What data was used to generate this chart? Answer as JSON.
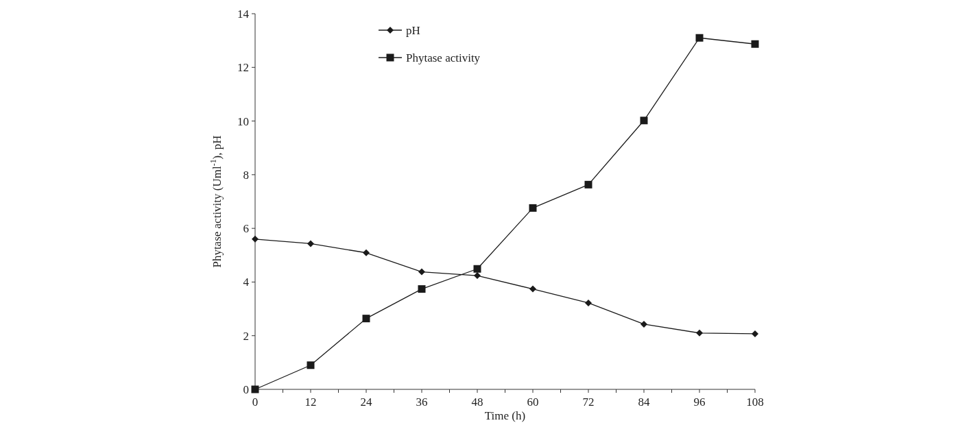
{
  "chart_data": {
    "type": "line",
    "xlabel": "Time (h)",
    "ylabel": "Phytase activity (Uml$^{-1}$), pH",
    "x": [
      0,
      12,
      24,
      36,
      48,
      60,
      72,
      84,
      96,
      108
    ],
    "series": [
      {
        "name": "pH",
        "color": "#1a1a1a",
        "marker": "diamond",
        "values": [
          5.6,
          5.43,
          5.09,
          4.38,
          4.24,
          3.74,
          3.22,
          2.43,
          2.1,
          2.07
        ]
      },
      {
        "name": "Phytase activity",
        "color": "#1a1a1a",
        "marker": "square",
        "values": [
          0,
          0.9,
          2.64,
          3.74,
          4.49,
          6.76,
          7.63,
          10.02,
          13.1,
          12.87
        ]
      }
    ],
    "xlim": [
      0,
      108
    ],
    "xticks": [
      0,
      {
        "value": 6,
        "label": null
      },
      12,
      {
        "value": 18,
        "label": null
      },
      24,
      {
        "value": 30,
        "label": null
      },
      36,
      {
        "value": 42,
        "label": null
      },
      48,
      {
        "value": 54,
        "label": null
      },
      60,
      {
        "value": 66,
        "label": null
      },
      72,
      {
        "value": 78,
        "label": null
      },
      84,
      {
        "value": 90,
        "label": null
      },
      96,
      {
        "value": 102,
        "label": null
      },
      108
    ],
    "ylim": [
      0,
      14
    ],
    "yticks": [
      0,
      2,
      4,
      6,
      8,
      10,
      12,
      14
    ],
    "legend": "top left",
    "grid": false
  }
}
